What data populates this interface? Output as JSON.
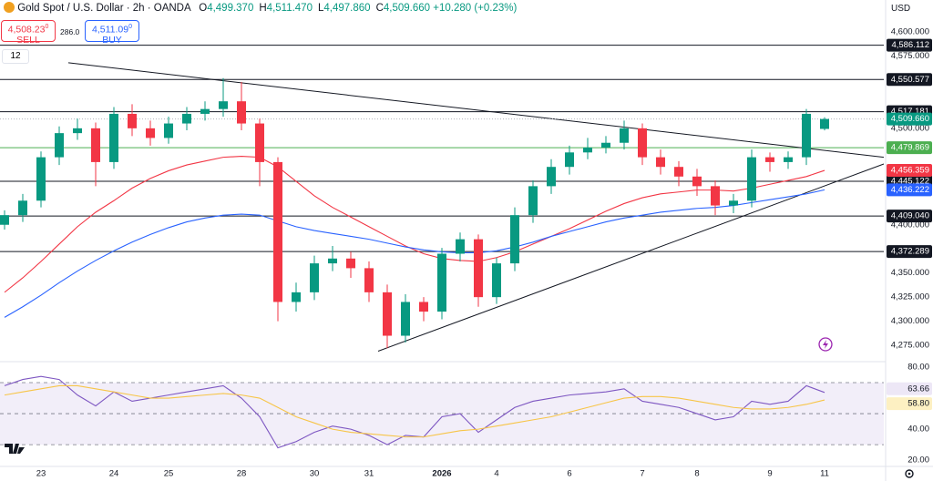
{
  "header": {
    "symbol": "Gold Spot / U.S. Dollar · 2h · OANDA",
    "ohlc": [
      {
        "key": "O",
        "value": "4,499.370"
      },
      {
        "key": "H",
        "value": "4,511.470"
      },
      {
        "key": "L",
        "value": "4,497.860"
      },
      {
        "key": "C",
        "value": "4,509.660"
      }
    ],
    "change": "+10.280 (+0.23%)",
    "sell": {
      "price": "4,508.23",
      "sup": "0",
      "label": "SELL"
    },
    "spread": "286.0",
    "buy": {
      "price": "4,511.09",
      "sup": "0",
      "label": "BUY"
    },
    "indicators": "12",
    "currency": "USD"
  },
  "chart_data": {
    "type": "candlestick",
    "categories": [
      null,
      null,
      "23",
      null,
      null,
      null,
      "24",
      null,
      null,
      "25",
      null,
      null,
      null,
      "28",
      null,
      null,
      null,
      "30",
      null,
      null,
      "31",
      null,
      null,
      null,
      "2026",
      null,
      null,
      "4",
      null,
      null,
      null,
      "6",
      null,
      null,
      null,
      "7",
      null,
      null,
      "8",
      null,
      null,
      null,
      "9",
      null,
      null,
      "11"
    ],
    "open": [
      4400,
      4410,
      4425,
      4470,
      4495,
      4500,
      4465,
      4515,
      4500,
      4490,
      4505,
      4515,
      4520,
      4528,
      4505,
      4465,
      4320,
      4330,
      4360,
      4365,
      4355,
      4330,
      4285,
      4320,
      4310,
      4370,
      4385,
      4325,
      4360,
      4410,
      4440,
      4460,
      4475,
      4480,
      4485,
      4500,
      4470,
      4460,
      4450,
      4440,
      4420,
      4425,
      4470,
      4465,
      4470,
      4499.37
    ],
    "high": [
      4415,
      4432,
      4476,
      4502,
      4510,
      4506,
      4522,
      4525,
      4508,
      4512,
      4522,
      4528,
      4552,
      4548,
      4510,
      4470,
      4340,
      4368,
      4378,
      4372,
      4362,
      4338,
      4328,
      4325,
      4376,
      4392,
      4390,
      4366,
      4418,
      4446,
      4468,
      4482,
      4490,
      4492,
      4508,
      4505,
      4478,
      4466,
      4458,
      4446,
      4432,
      4478,
      4475,
      4476,
      4520,
      4511.47
    ],
    "low": [
      4395,
      4403,
      4418,
      4462,
      4488,
      4440,
      4458,
      4492,
      4482,
      4484,
      4498,
      4508,
      4512,
      4498,
      4440,
      4300,
      4310,
      4322,
      4352,
      4345,
      4320,
      4272,
      4278,
      4300,
      4302,
      4362,
      4315,
      4318,
      4352,
      4402,
      4432,
      4452,
      4468,
      4474,
      4478,
      4462,
      4452,
      4440,
      4430,
      4410,
      4412,
      4418,
      4455,
      4458,
      4462,
      4497.86
    ],
    "close": [
      4410,
      4425,
      4470,
      4495,
      4500,
      4465,
      4515,
      4500,
      4490,
      4505,
      4515,
      4520,
      4528,
      4505,
      4465,
      4320,
      4330,
      4360,
      4365,
      4355,
      4330,
      4285,
      4320,
      4310,
      4370,
      4385,
      4325,
      4360,
      4410,
      4440,
      4460,
      4475,
      4480,
      4485,
      4500,
      4470,
      4460,
      4450,
      4440,
      4420,
      4425,
      4470,
      4465,
      4470,
      4515,
      4509.66
    ],
    "last_label": "4,509.660",
    "up_color": "#089981",
    "down_color": "#f23645",
    "ylim": [
      4260,
      4633
    ],
    "yticks": [
      {
        "value": 4600,
        "label": "4,600.000"
      },
      {
        "value": 4575,
        "label": "4,575.000"
      },
      {
        "value": 4500,
        "label": "4,500.000"
      },
      {
        "value": 4400,
        "label": "4,400.000"
      },
      {
        "value": 4350,
        "label": "4,350.000"
      },
      {
        "value": 4325,
        "label": "4,325.000"
      },
      {
        "value": 4300,
        "label": "4,300.000"
      },
      {
        "value": 4275,
        "label": "4,275.000"
      }
    ],
    "series": [
      {
        "color": "#f23645",
        "last_label": "4,456.359",
        "values": [
          4330,
          4345,
          4362,
          4380,
          4398,
          4413,
          4425,
          4438,
          4448,
          4456,
          4462,
          4466,
          4470,
          4471,
          4470,
          4460,
          4445,
          4430,
          4418,
          4408,
          4398,
          4388,
          4378,
          4370,
          4365,
          4363,
          4362,
          4366,
          4372,
          4380,
          4388,
          4396,
          4405,
          4414,
          4422,
          4428,
          4432,
          4434,
          4436,
          4436,
          4435,
          4438,
          4442,
          4446,
          4450,
          4456.359
        ]
      },
      {
        "color": "#2962ff",
        "last_label": "4,436.222",
        "values": [
          4304,
          4315,
          4327,
          4340,
          4352,
          4363,
          4373,
          4382,
          4390,
          4397,
          4403,
          4407,
          4410,
          4411,
          4410,
          4404,
          4398,
          4394,
          4391,
          4388,
          4385,
          4381,
          4377,
          4374,
          4372,
          4371,
          4371,
          4373,
          4377,
          4382,
          4388,
          4393,
          4398,
          4403,
          4407,
          4410,
          4413,
          4415,
          4417,
          4418,
          4420,
          4423,
          4426,
          4429,
          4432,
          4436.222
        ]
      }
    ],
    "levels": [
      {
        "value": 4586.112,
        "label": "4,586.112",
        "color": "#131722"
      },
      {
        "value": 4550.577,
        "label": "4,550.577",
        "color": "#131722"
      },
      {
        "value": 4517.181,
        "label": "4,517.181",
        "color": "#131722"
      },
      {
        "value": 4479.869,
        "label": "4,479.869",
        "color": "#4caf50"
      },
      {
        "value": 4445.122,
        "label": "4,445.122",
        "color": "#131722"
      },
      {
        "value": 4409.04,
        "label": "4,409.040",
        "color": "#131722"
      },
      {
        "value": 4372.289,
        "label": "4,372.289",
        "color": "#131722"
      }
    ],
    "trendlines": [
      {
        "start": [
          3.5,
          4568
        ],
        "end": [
          48.25,
          4470
        ]
      },
      {
        "start": [
          20.5,
          4269
        ],
        "end": [
          48.25,
          4463
        ]
      }
    ],
    "rsi": {
      "ylim": [
        16,
        83.5
      ],
      "levels": [
        70,
        50,
        30
      ],
      "yticks": [
        {
          "value": 80,
          "label": "80.00"
        },
        {
          "value": 40,
          "label": "40.00"
        },
        {
          "value": 20,
          "label": "20.00"
        }
      ],
      "series": [
        {
          "color": "#7e57c2",
          "bg": "#ede7f6",
          "last_label": "63.66",
          "values": [
            68,
            72,
            74,
            72,
            62,
            55,
            64,
            58,
            60,
            62,
            64,
            66,
            68,
            60,
            48,
            28,
            32,
            38,
            42,
            40,
            36,
            30,
            36,
            35,
            48,
            50,
            38,
            46,
            54,
            58,
            60,
            62,
            63,
            64,
            66,
            58,
            56,
            54,
            50,
            46,
            48,
            58,
            56,
            58,
            68,
            63.66
          ]
        },
        {
          "color": "#f7c548",
          "bg": "#fdf0c2",
          "last_label": "58.80",
          "values": [
            62,
            64,
            66,
            68,
            68,
            66,
            64,
            62,
            60,
            60,
            61,
            62,
            63,
            62,
            60,
            54,
            48,
            44,
            40,
            38,
            37,
            36,
            35,
            35,
            37,
            39,
            40,
            42,
            44,
            46,
            48,
            51,
            54,
            57,
            60,
            61,
            61,
            60,
            58,
            56,
            54,
            53,
            53,
            54,
            56,
            58.8
          ]
        }
      ]
    }
  }
}
